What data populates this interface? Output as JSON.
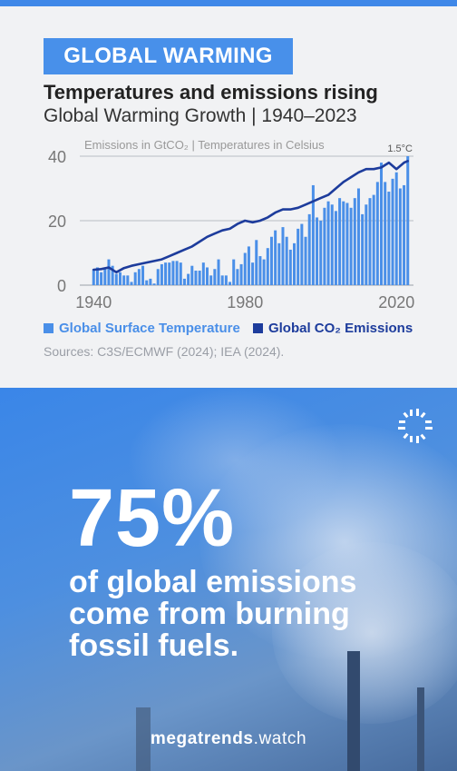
{
  "tag": "GLOBAL WARMING",
  "headline": "Temperatures and emissions rising",
  "subhead": "Global Warming Growth | 1940–2023",
  "chart_data": {
    "type": "bar",
    "subtitle": "Emissions in GtCO₂  | Temperatures in Celsius",
    "annotation": "1.5°C",
    "ylim": [
      0,
      40
    ],
    "yticks": [
      0,
      20,
      40
    ],
    "xticks": [
      1940,
      1980,
      2020
    ],
    "xlim": [
      1938.5,
      2024.5
    ],
    "grid": true,
    "legend_position": "bottom",
    "colors": {
      "temperature": "#4a8fe8",
      "co2": "#1d3c9c"
    },
    "series": [
      {
        "name": "Global Surface Temperature",
        "type": "bar",
        "x": [
          1940,
          1941,
          1942,
          1943,
          1944,
          1945,
          1946,
          1947,
          1948,
          1949,
          1950,
          1951,
          1952,
          1953,
          1954,
          1955,
          1956,
          1957,
          1958,
          1959,
          1960,
          1961,
          1962,
          1963,
          1964,
          1965,
          1966,
          1967,
          1968,
          1969,
          1970,
          1971,
          1972,
          1973,
          1974,
          1975,
          1976,
          1977,
          1978,
          1979,
          1980,
          1981,
          1982,
          1983,
          1984,
          1985,
          1986,
          1987,
          1988,
          1989,
          1990,
          1991,
          1992,
          1993,
          1994,
          1995,
          1996,
          1997,
          1998,
          1999,
          2000,
          2001,
          2002,
          2003,
          2004,
          2005,
          2006,
          2007,
          2008,
          2009,
          2010,
          2011,
          2012,
          2013,
          2014,
          2015,
          2016,
          2017,
          2018,
          2019,
          2020,
          2021,
          2022,
          2023
        ],
        "values": [
          5,
          5.5,
          4,
          5,
          8,
          6,
          3.5,
          4,
          3,
          3,
          1,
          4,
          5,
          6,
          1.5,
          2,
          0.5,
          5,
          6.5,
          7,
          7,
          7.5,
          7.5,
          7,
          2,
          3.5,
          6,
          4.5,
          4.5,
          7,
          5.5,
          3,
          5,
          8,
          3,
          3,
          1,
          8,
          5,
          6.5,
          10,
          12,
          7,
          14,
          9,
          8,
          11.5,
          15,
          17,
          13,
          18,
          15,
          11,
          13,
          17.5,
          19,
          15,
          22,
          31,
          21,
          20,
          24,
          26,
          25,
          23,
          27,
          26,
          25.5,
          24,
          27,
          30,
          22,
          25,
          27,
          28,
          32,
          38,
          32,
          29,
          33,
          35,
          30,
          31,
          40
        ]
      },
      {
        "name": "Global CO₂ Emissions",
        "type": "line",
        "x": [
          1940,
          1942,
          1944,
          1946,
          1948,
          1950,
          1952,
          1954,
          1956,
          1958,
          1960,
          1962,
          1964,
          1966,
          1968,
          1970,
          1972,
          1974,
          1976,
          1978,
          1980,
          1982,
          1984,
          1986,
          1988,
          1990,
          1992,
          1994,
          1996,
          1998,
          2000,
          2002,
          2004,
          2006,
          2008,
          2010,
          2012,
          2014,
          2016,
          2018,
          2020,
          2022,
          2023
        ],
        "values": [
          4.8,
          5,
          5.5,
          4,
          5.3,
          6,
          6.5,
          7,
          7.5,
          8,
          9,
          10,
          11,
          12,
          13.5,
          15,
          16,
          17,
          17.5,
          19,
          20,
          19.5,
          20,
          21,
          22.5,
          23.5,
          23.5,
          24,
          25,
          26,
          27,
          28,
          30,
          32,
          33.5,
          35,
          36,
          36,
          36.5,
          38,
          36,
          38,
          38.5
        ]
      }
    ]
  },
  "legend": {
    "temp_label": "Global Surface Temperature",
    "co2_label": "Global CO₂ Emissions"
  },
  "sources": "Sources: C3S/ECMWF (2024); IEA (2024).",
  "stat": {
    "number": "75%",
    "line1": "of global emissions",
    "line2": "come from burning",
    "line3": "fossil fuels."
  },
  "brand": {
    "bold": "megatrends",
    "rest": ".watch"
  }
}
